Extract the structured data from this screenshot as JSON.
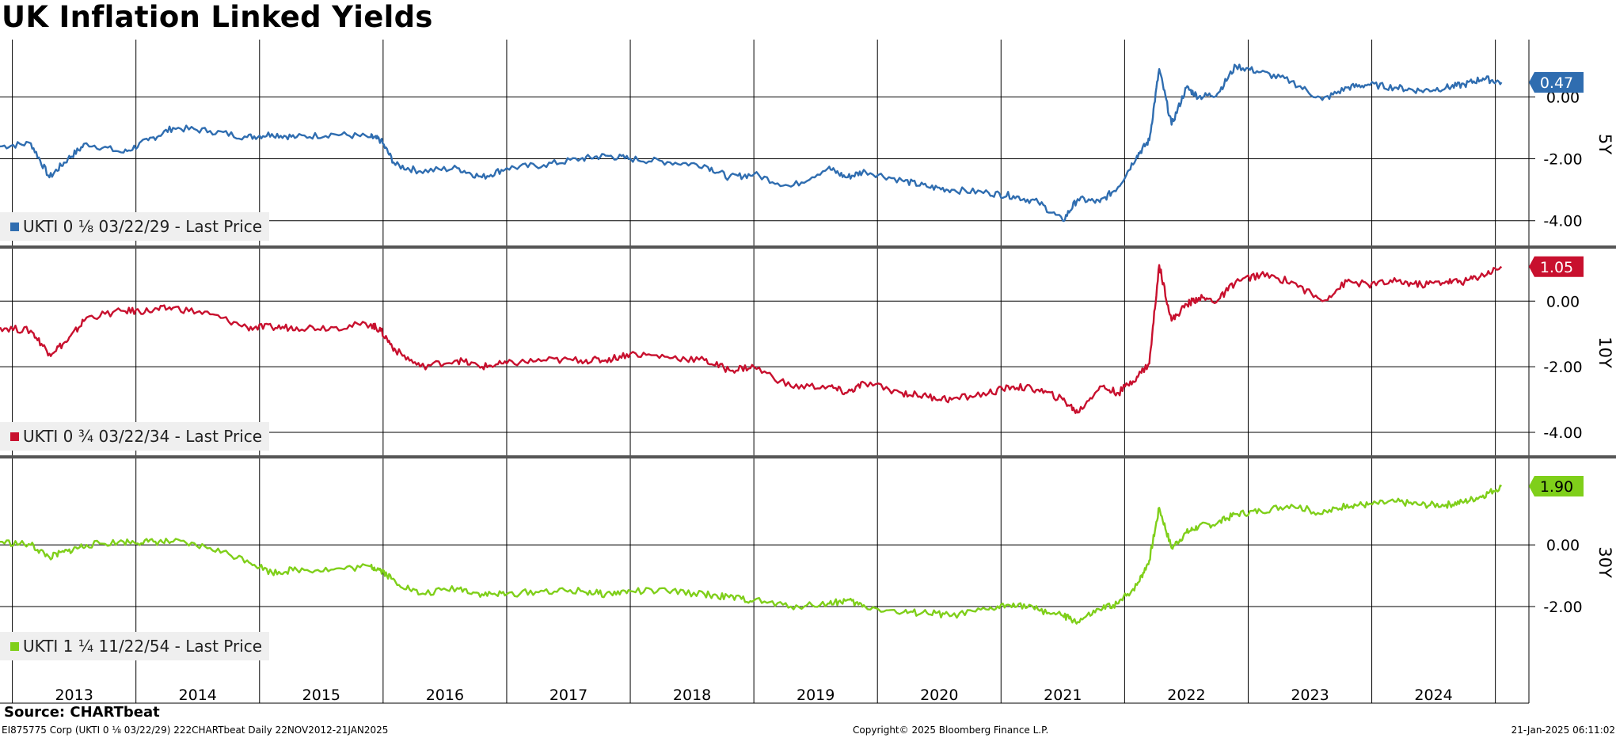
{
  "title": "UK Inflation Linked Yields",
  "source": "Source: CHARTbeat",
  "footer": {
    "left": "EI875775 Corp (UKTI 0 ⅛ 03/22/29) 222CHARTbeat  Daily 22NOV2012-21JAN2025",
    "center": "Copyright© 2025 Bloomberg Finance L.P.",
    "right": "21-Jan-2025 06:11:02"
  },
  "colors": {
    "p5": "#2f6db0",
    "p10": "#c8102e",
    "p30": "#7fcf1a"
  },
  "chart_data": [
    {
      "type": "line",
      "panel_label": "5Y",
      "legend": "UKTI 0 ⅛ 03/22/29 - Last Price",
      "last_value_label": "0.47",
      "last_value": 0.47,
      "ylim": [
        -4.8,
        1.8
      ],
      "yticks": [
        0,
        -2,
        -4
      ],
      "ytick_labels": [
        "0.00",
        "-2.00",
        "-4.00"
      ],
      "x": [
        2012.9,
        2013.15,
        2013.3,
        2013.45,
        2013.6,
        2013.9,
        2014.1,
        2014.3,
        2014.6,
        2014.9,
        2015.1,
        2015.3,
        2015.6,
        2015.9,
        2015.98,
        2016.1,
        2016.3,
        2016.6,
        2016.8,
        2017.0,
        2017.3,
        2017.6,
        2017.8,
        2018.0,
        2018.3,
        2018.6,
        2018.8,
        2019.0,
        2019.3,
        2019.6,
        2019.75,
        2019.9,
        2020.2,
        2020.4,
        2020.6,
        2020.9,
        2021.1,
        2021.3,
        2021.5,
        2021.62,
        2021.8,
        2021.95,
        2022.1,
        2022.2,
        2022.28,
        2022.38,
        2022.5,
        2022.6,
        2022.75,
        2022.9,
        2023.1,
        2023.35,
        2023.6,
        2023.8,
        2023.97,
        2024.2,
        2024.4,
        2024.6,
        2024.75,
        2024.9,
        2025.05
      ],
      "values": [
        -1.6,
        -1.5,
        -2.6,
        -2.0,
        -1.5,
        -1.8,
        -1.4,
        -1.0,
        -1.1,
        -1.3,
        -1.2,
        -1.3,
        -1.2,
        -1.3,
        -1.4,
        -2.2,
        -2.4,
        -2.3,
        -2.6,
        -2.3,
        -2.2,
        -2.0,
        -1.9,
        -2.0,
        -2.1,
        -2.2,
        -2.6,
        -2.5,
        -2.9,
        -2.3,
        -2.6,
        -2.4,
        -2.7,
        -2.9,
        -3.0,
        -3.1,
        -3.2,
        -3.4,
        -4.0,
        -3.3,
        -3.4,
        -2.9,
        -1.9,
        -1.4,
        0.9,
        -0.9,
        0.3,
        0.0,
        0.1,
        1.0,
        0.8,
        0.5,
        -0.1,
        0.3,
        0.4,
        0.3,
        0.2,
        0.3,
        0.4,
        0.6,
        0.47
      ]
    },
    {
      "type": "line",
      "panel_label": "10Y",
      "legend": "UKTI 0 ¾ 03/22/34 - Last Price",
      "last_value_label": "1.05",
      "last_value": 1.05,
      "ylim": [
        -4.7,
        1.6
      ],
      "yticks": [
        0,
        -2,
        -4
      ],
      "ytick_labels": [
        "0.00",
        "-2.00",
        "-4.00"
      ],
      "x": [
        2012.9,
        2013.15,
        2013.3,
        2013.45,
        2013.6,
        2013.9,
        2014.1,
        2014.3,
        2014.6,
        2014.9,
        2015.1,
        2015.3,
        2015.6,
        2015.9,
        2015.98,
        2016.1,
        2016.3,
        2016.6,
        2016.8,
        2017.0,
        2017.3,
        2017.6,
        2017.8,
        2018.0,
        2018.3,
        2018.6,
        2018.8,
        2019.0,
        2019.3,
        2019.6,
        2019.75,
        2019.9,
        2020.2,
        2020.4,
        2020.6,
        2020.9,
        2021.1,
        2021.3,
        2021.5,
        2021.62,
        2021.8,
        2021.95,
        2022.1,
        2022.2,
        2022.28,
        2022.38,
        2022.5,
        2022.6,
        2022.75,
        2022.9,
        2023.1,
        2023.35,
        2023.6,
        2023.8,
        2023.97,
        2024.2,
        2024.4,
        2024.6,
        2024.75,
        2024.9,
        2025.05
      ],
      "values": [
        -0.8,
        -0.9,
        -1.6,
        -1.2,
        -0.5,
        -0.3,
        -0.3,
        -0.2,
        -0.4,
        -0.8,
        -0.8,
        -0.8,
        -0.8,
        -0.7,
        -0.9,
        -1.5,
        -2.0,
        -1.8,
        -2.0,
        -1.9,
        -1.8,
        -1.8,
        -1.8,
        -1.6,
        -1.7,
        -1.8,
        -2.1,
        -2.0,
        -2.6,
        -2.6,
        -2.8,
        -2.5,
        -2.8,
        -2.9,
        -3.0,
        -2.8,
        -2.6,
        -2.7,
        -3.0,
        -3.4,
        -2.6,
        -2.8,
        -2.3,
        -1.9,
        1.1,
        -0.6,
        -0.1,
        0.1,
        0.0,
        0.6,
        0.8,
        0.6,
        0.0,
        0.6,
        0.5,
        0.6,
        0.5,
        0.6,
        0.6,
        0.8,
        1.05
      ]
    },
    {
      "type": "line",
      "panel_label": "30Y",
      "legend": "UKTI 1 ¼ 11/22/54 - Last Price",
      "last_value_label": "1.90",
      "last_value": 1.9,
      "ylim": [
        -3.9,
        2.8
      ],
      "yticks": [
        0,
        -2
      ],
      "ytick_labels": [
        "0.00",
        "-2.00"
      ],
      "x": [
        2012.9,
        2013.15,
        2013.3,
        2013.45,
        2013.6,
        2013.9,
        2014.1,
        2014.3,
        2014.6,
        2014.9,
        2015.1,
        2015.3,
        2015.6,
        2015.9,
        2015.98,
        2016.1,
        2016.3,
        2016.6,
        2016.8,
        2017.0,
        2017.3,
        2017.6,
        2017.8,
        2018.0,
        2018.3,
        2018.6,
        2018.8,
        2019.0,
        2019.3,
        2019.6,
        2019.75,
        2019.9,
        2020.2,
        2020.4,
        2020.6,
        2020.9,
        2021.1,
        2021.3,
        2021.5,
        2021.62,
        2021.8,
        2021.95,
        2022.1,
        2022.2,
        2022.28,
        2022.38,
        2022.5,
        2022.6,
        2022.75,
        2022.9,
        2023.1,
        2023.35,
        2023.6,
        2023.8,
        2023.97,
        2024.2,
        2024.4,
        2024.6,
        2024.75,
        2024.9,
        2025.05
      ],
      "values": [
        0.1,
        0.0,
        -0.4,
        -0.2,
        0.0,
        0.1,
        0.1,
        0.1,
        -0.1,
        -0.5,
        -0.9,
        -0.8,
        -0.8,
        -0.7,
        -0.8,
        -1.2,
        -1.6,
        -1.4,
        -1.6,
        -1.6,
        -1.5,
        -1.5,
        -1.6,
        -1.5,
        -1.5,
        -1.6,
        -1.7,
        -1.8,
        -2.0,
        -1.9,
        -1.8,
        -2.0,
        -2.2,
        -2.2,
        -2.3,
        -2.1,
        -1.9,
        -2.1,
        -2.3,
        -2.5,
        -2.1,
        -1.9,
        -1.3,
        -0.5,
        1.2,
        -0.1,
        0.4,
        0.6,
        0.7,
        1.0,
        1.1,
        1.3,
        1.0,
        1.3,
        1.3,
        1.4,
        1.3,
        1.3,
        1.4,
        1.6,
        1.9
      ]
    }
  ],
  "x_axis": {
    "labels": [
      "2013",
      "2014",
      "2015",
      "2016",
      "2017",
      "2018",
      "2019",
      "2020",
      "2021",
      "2022",
      "2023",
      "2024"
    ],
    "xlim": [
      2012.9,
      2025.06
    ]
  }
}
